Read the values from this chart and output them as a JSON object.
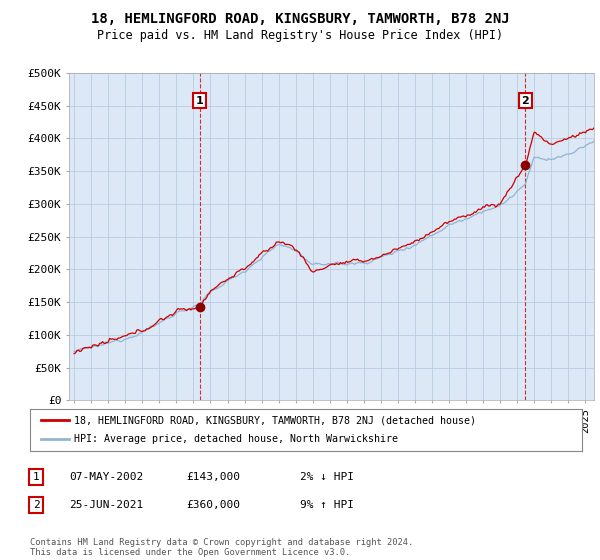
{
  "title": "18, HEMLINGFORD ROAD, KINGSBURY, TAMWORTH, B78 2NJ",
  "subtitle": "Price paid vs. HM Land Registry's House Price Index (HPI)",
  "ylabel_ticks": [
    "£0",
    "£50K",
    "£100K",
    "£150K",
    "£200K",
    "£250K",
    "£300K",
    "£350K",
    "£400K",
    "£450K",
    "£500K"
  ],
  "ytick_values": [
    0,
    50000,
    100000,
    150000,
    200000,
    250000,
    300000,
    350000,
    400000,
    450000,
    500000
  ],
  "ylim": [
    0,
    500000
  ],
  "xlim_start": 1994.7,
  "xlim_end": 2025.5,
  "sale1": {
    "year": 2002.37,
    "price": 143000,
    "label": "1"
  },
  "sale2": {
    "year": 2021.48,
    "price": 360000,
    "label": "2"
  },
  "hpi_color": "#92b4d4",
  "price_color": "#cc0000",
  "chart_bg": "#dce8f5",
  "legend_line1": "18, HEMLINGFORD ROAD, KINGSBURY, TAMWORTH, B78 2NJ (detached house)",
  "legend_line2": "HPI: Average price, detached house, North Warwickshire",
  "table_row1": [
    "1",
    "07-MAY-2002",
    "£143,000",
    "2% ↓ HPI"
  ],
  "table_row2": [
    "2",
    "25-JUN-2021",
    "£360,000",
    "9% ↑ HPI"
  ],
  "footer": "Contains HM Land Registry data © Crown copyright and database right 2024.\nThis data is licensed under the Open Government Licence v3.0.",
  "background_color": "#ffffff",
  "grid_color": "#b0c8e0"
}
